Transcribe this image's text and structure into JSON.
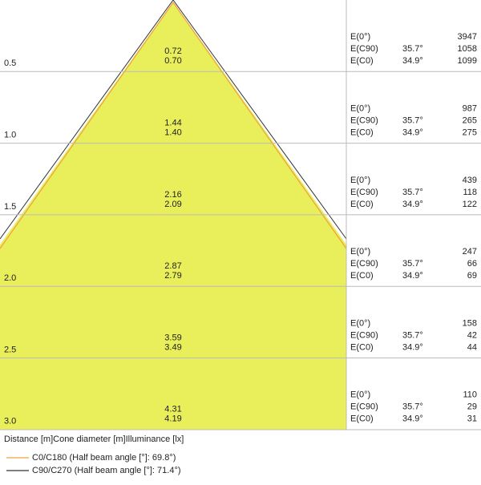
{
  "rows": [
    {
      "distance": "0.5",
      "diameters": [
        "0.72",
        "0.70"
      ],
      "e0_label": "E(0°)",
      "e0": "3947",
      "ec90_label": "E(C90)",
      "ec90_angle": "35.7°",
      "ec90": "1058",
      "ec0_label": "E(C0)",
      "ec0_angle": "34.9°",
      "ec0": "1099"
    },
    {
      "distance": "1.0",
      "diameters": [
        "1.44",
        "1.40"
      ],
      "e0_label": "E(0°)",
      "e0": "987",
      "ec90_label": "E(C90)",
      "ec90_angle": "35.7°",
      "ec90": "265",
      "ec0_label": "E(C0)",
      "ec0_angle": "34.9°",
      "ec0": "275"
    },
    {
      "distance": "1.5",
      "diameters": [
        "2.16",
        "2.09"
      ],
      "e0_label": "E(0°)",
      "e0": "439",
      "ec90_label": "E(C90)",
      "ec90_angle": "35.7°",
      "ec90": "118",
      "ec0_label": "E(C0)",
      "ec0_angle": "34.9°",
      "ec0": "122"
    },
    {
      "distance": "2.0",
      "diameters": [
        "2.87",
        "2.79"
      ],
      "e0_label": "E(0°)",
      "e0": "247",
      "ec90_label": "E(C90)",
      "ec90_angle": "35.7°",
      "ec90": "66",
      "ec0_label": "E(C0)",
      "ec0_angle": "34.9°",
      "ec0": "69"
    },
    {
      "distance": "2.5",
      "diameters": [
        "3.59",
        "3.49"
      ],
      "e0_label": "E(0°)",
      "e0": "158",
      "ec90_label": "E(C90)",
      "ec90_angle": "35.7°",
      "ec90": "42",
      "ec0_label": "E(C0)",
      "ec0_angle": "34.9°",
      "ec0": "44"
    },
    {
      "distance": "3.0",
      "diameters": [
        "4.31",
        "4.19"
      ],
      "e0_label": "E(0°)",
      "e0": "110",
      "ec90_label": "E(C90)",
      "ec90_angle": "35.7°",
      "ec90": "29",
      "ec0_label": "E(C0)",
      "ec0_angle": "34.9°",
      "ec0": "31"
    }
  ],
  "footer": "Distance [m]Cone diameter [m]Illuminance [lx]",
  "legend": [
    "C0/C180 (Half beam angle [°]: 69.8°)",
    "C90/C270 (Half beam angle [°]: 71.4°)"
  ]
}
